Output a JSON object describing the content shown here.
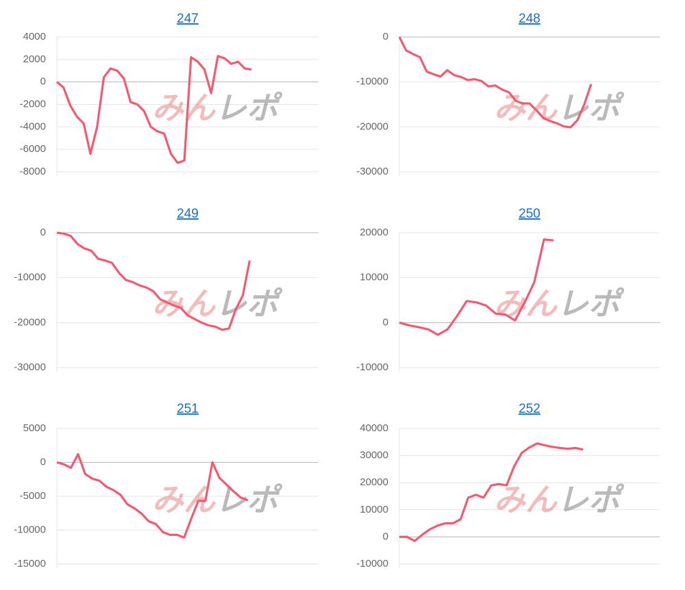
{
  "watermark": [
    "みん",
    "レポ"
  ],
  "chart_data": [
    {
      "type": "line",
      "title": "247",
      "color": "#f25a72",
      "ylim": [
        -8000,
        4000
      ],
      "yticks": [
        4000,
        2000,
        0,
        -2000,
        -4000,
        -6000,
        -8000
      ],
      "grid": true,
      "values": [
        0,
        -500,
        -2100,
        -3100,
        -3700,
        -6400,
        -4000,
        400,
        1200,
        1000,
        300,
        -1800,
        -2000,
        -2600,
        -4000,
        -4400,
        -4600,
        -6400,
        -7200,
        -7000,
        2200,
        1800,
        1100,
        -1000,
        2300,
        2100,
        1600,
        1800,
        1200,
        1100,
        null,
        null,
        null,
        null,
        null,
        null,
        null,
        null,
        null,
        null
      ]
    },
    {
      "type": "line",
      "title": "248",
      "color": "#f25a72",
      "ylim": [
        -30000,
        0
      ],
      "yticks": [
        0,
        -10000,
        -20000,
        -30000
      ],
      "grid": true,
      "values": [
        0,
        -3000,
        -3800,
        -4500,
        -7700,
        -8300,
        -8800,
        -7400,
        -8500,
        -8900,
        -9600,
        -9400,
        -9800,
        -11000,
        -10800,
        -11700,
        -12300,
        -14200,
        -14800,
        -14800,
        -16300,
        -18000,
        -18700,
        -19200,
        -19900,
        -20100,
        -18500,
        -15000,
        -10500,
        null,
        null,
        null,
        null,
        null,
        null,
        null,
        null,
        null,
        null
      ]
    },
    {
      "type": "line",
      "title": "249",
      "color": "#f25a72",
      "ylim": [
        -30000,
        0
      ],
      "yticks": [
        0,
        -10000,
        -20000,
        -30000
      ],
      "grid": true,
      "values": [
        0,
        -200,
        -700,
        -2500,
        -3500,
        -4000,
        -5800,
        -6200,
        -6700,
        -8900,
        -10500,
        -11000,
        -11700,
        -12200,
        -13000,
        -14800,
        -15500,
        -16200,
        -16700,
        -18400,
        -19200,
        -20000,
        -20600,
        -20900,
        -21600,
        -21300,
        -17000,
        -14000,
        -6200,
        null,
        null,
        null,
        null,
        null,
        null,
        null,
        null,
        null,
        null
      ]
    },
    {
      "type": "line",
      "title": "250",
      "color": "#f25a72",
      "ylim": [
        -10000,
        20000
      ],
      "yticks": [
        20000,
        10000,
        0,
        -10000
      ],
      "grid": true,
      "values": [
        0,
        -600,
        -1000,
        -1500,
        -2700,
        -1500,
        1500,
        4800,
        4500,
        3800,
        2000,
        1800,
        500,
        4500,
        9000,
        18500,
        18300,
        null,
        null,
        null,
        null,
        null,
        null,
        null,
        null,
        null,
        null,
        null
      ]
    },
    {
      "type": "line",
      "title": "251",
      "color": "#f25a72",
      "ylim": [
        -15000,
        5000
      ],
      "yticks": [
        5000,
        0,
        -5000,
        -10000,
        -15000
      ],
      "grid": true,
      "values": [
        0,
        -300,
        -800,
        1200,
        -1700,
        -2400,
        -2700,
        -3600,
        -4100,
        -4800,
        -6200,
        -6800,
        -7600,
        -8700,
        -9100,
        -10300,
        -10700,
        -10700,
        -11100,
        -8300,
        -5700,
        -5700,
        0,
        -2300,
        -3300,
        -4300,
        -5200,
        -5600,
        null,
        null,
        null,
        null,
        null,
        null,
        null,
        null,
        null,
        null
      ]
    },
    {
      "type": "line",
      "title": "252",
      "color": "#f25a72",
      "ylim": [
        -10000,
        40000
      ],
      "yticks": [
        40000,
        30000,
        20000,
        10000,
        0,
        -10000
      ],
      "grid": true,
      "values": [
        0,
        0,
        -1500,
        800,
        2800,
        4200,
        5000,
        5000,
        6500,
        14500,
        15500,
        14500,
        19000,
        19500,
        19000,
        26000,
        31000,
        33000,
        34500,
        33800,
        33200,
        32800,
        32500,
        32800,
        32200,
        null,
        null,
        null,
        null,
        null,
        null,
        null,
        null,
        null,
        null
      ]
    }
  ]
}
